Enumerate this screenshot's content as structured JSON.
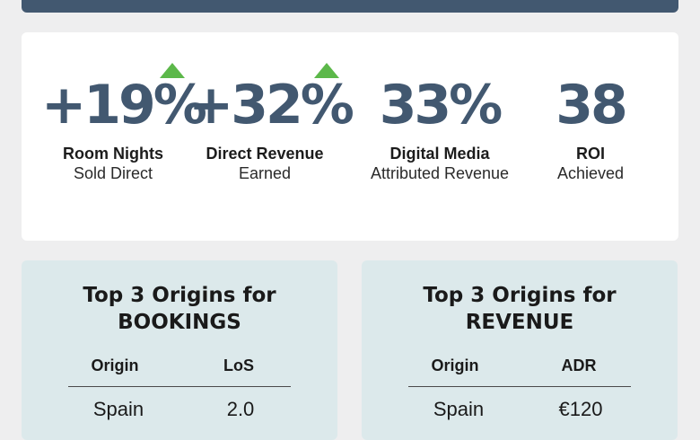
{
  "stats": [
    {
      "value": "+19%",
      "label": "Room Nights",
      "sublabel": "Sold Direct",
      "trend": "up"
    },
    {
      "value": "+32%",
      "label": "Direct Revenue",
      "sublabel": "Earned",
      "trend": "up"
    },
    {
      "value": "33%",
      "label": "Digital Media",
      "sublabel": "Attributed Revenue",
      "trend": "none"
    },
    {
      "value": "38",
      "label": "ROI",
      "sublabel": "Achieved",
      "trend": "none"
    }
  ],
  "colors": {
    "header_bar": "#425870",
    "stat_value": "#425870",
    "trend_up": "#5cb84a",
    "card_background": "#dce9eb",
    "page_background": "#eeeeef"
  },
  "icons": {
    "trend": "triangle-up-icon"
  },
  "bookings_card": {
    "title_line1": "Top 3 Origins for",
    "title_line2": "BOOKINGS",
    "columns": [
      "Origin",
      "LoS"
    ],
    "rows": [
      {
        "origin": "Spain",
        "value": "2.0"
      }
    ]
  },
  "revenue_card": {
    "title_line1": "Top 3 Origins for",
    "title_line2": "REVENUE",
    "columns": [
      "Origin",
      "ADR"
    ],
    "rows": [
      {
        "origin": "Spain",
        "value": "€120"
      }
    ]
  }
}
